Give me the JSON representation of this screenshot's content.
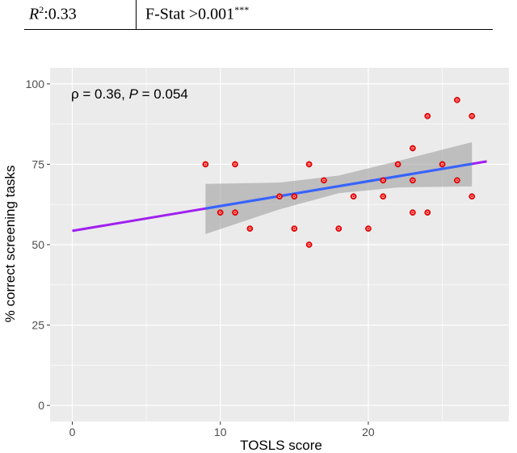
{
  "table": {
    "r2_symbol": "R",
    "r2_sup": "2",
    "r2_value": ":0.33",
    "fstat_text": "F-Stat >0.001",
    "fstat_sup": "***"
  },
  "chart_data": {
    "type": "scatter",
    "xlabel": "TOSLS score",
    "ylabel": "% correct screening tasks",
    "xlim": [
      -1.5,
      29.5
    ],
    "ylim": [
      -5,
      105
    ],
    "x_ticks": [
      0,
      10,
      20
    ],
    "y_ticks": [
      0,
      25,
      50,
      75,
      100
    ],
    "grid": true,
    "annotation": {
      "rho_symbol": "ρ",
      "rho_text": " = 0.36, ",
      "p_symbol": "P",
      "p_text": " = 0.054"
    },
    "points": [
      {
        "x": 9,
        "y": 75
      },
      {
        "x": 10,
        "y": 60
      },
      {
        "x": 11,
        "y": 75
      },
      {
        "x": 11,
        "y": 60
      },
      {
        "x": 12,
        "y": 55
      },
      {
        "x": 14,
        "y": 65
      },
      {
        "x": 15,
        "y": 65
      },
      {
        "x": 15,
        "y": 55
      },
      {
        "x": 16,
        "y": 75
      },
      {
        "x": 16,
        "y": 50
      },
      {
        "x": 17,
        "y": 70
      },
      {
        "x": 18,
        "y": 55
      },
      {
        "x": 19,
        "y": 65
      },
      {
        "x": 20,
        "y": 55
      },
      {
        "x": 21,
        "y": 70
      },
      {
        "x": 21,
        "y": 65
      },
      {
        "x": 22,
        "y": 75
      },
      {
        "x": 23,
        "y": 80
      },
      {
        "x": 23,
        "y": 70
      },
      {
        "x": 23,
        "y": 60
      },
      {
        "x": 24,
        "y": 90
      },
      {
        "x": 24,
        "y": 60
      },
      {
        "x": 25,
        "y": 75
      },
      {
        "x": 26,
        "y": 95
      },
      {
        "x": 26,
        "y": 70
      },
      {
        "x": 27,
        "y": 90
      },
      {
        "x": 27,
        "y": 65
      }
    ],
    "fit_line": {
      "x0": 0,
      "y0": 54.3,
      "x1": 28,
      "y1": 75.9
    },
    "fit_range": [
      9,
      27
    ],
    "ci_band": [
      {
        "x": 9,
        "lower": 53.3,
        "upper": 68.9
      },
      {
        "x": 14,
        "lower": 61.0,
        "upper": 69.3
      },
      {
        "x": 18,
        "lower": 66.0,
        "upper": 71.5
      },
      {
        "x": 22,
        "lower": 67.8,
        "upper": 76.0
      },
      {
        "x": 27,
        "lower": 68.1,
        "upper": 81.9
      }
    ],
    "colors": {
      "panel": "#ebebeb",
      "grid": "#ffffff",
      "point": "#ff0000",
      "fit_inner": "#3366ff",
      "fit_outer": "#a020f0",
      "band": "#999999"
    }
  }
}
